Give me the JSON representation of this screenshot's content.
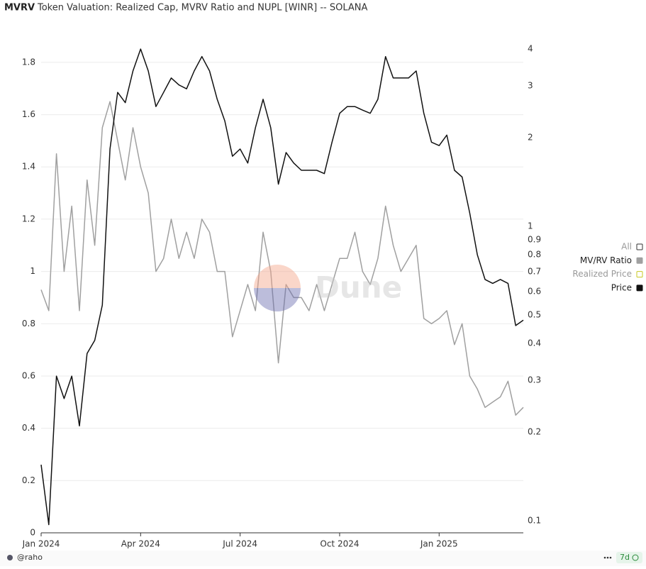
{
  "header": {
    "badge": "MVRV",
    "title": "Token Valuation: Realized Cap, MVRV Ratio and NUPL [WINR] -- SOLANA"
  },
  "chart_data": {
    "type": "line",
    "watermark": "Dune",
    "legend_all": "All",
    "legend": "right",
    "grid": true,
    "y2log": true,
    "categories": [
      "Jan 2024",
      null,
      null,
      null,
      null,
      null,
      null,
      null,
      null,
      null,
      null,
      null,
      null,
      "Apr 2024",
      null,
      null,
      null,
      null,
      null,
      null,
      null,
      null,
      null,
      null,
      null,
      null,
      "Jul 2024",
      null,
      null,
      null,
      null,
      null,
      null,
      null,
      null,
      null,
      null,
      null,
      null,
      "Oct 2024",
      null,
      null,
      null,
      null,
      null,
      null,
      null,
      null,
      null,
      null,
      null,
      null,
      "Jan 2025",
      null,
      null,
      null,
      null,
      null,
      null,
      null,
      null,
      null,
      null,
      null
    ],
    "ylim": [
      0,
      1.93
    ],
    "yticks": [
      0,
      0.2,
      0.4,
      0.6,
      0.8,
      1,
      1.2,
      1.4,
      1.6,
      1.8
    ],
    "y2lim": [
      0.091,
      4.7
    ],
    "y2ticks": [
      0.1,
      0.2,
      0.3,
      0.4,
      0.5,
      0.6,
      0.7,
      0.8,
      0.9,
      1,
      2,
      3,
      4
    ],
    "series": [
      {
        "name": "MV/RV Ratio",
        "color": "#a0a0a0",
        "axis": "y",
        "values": [
          0.93,
          0.85,
          1.45,
          1.0,
          1.25,
          0.85,
          1.35,
          1.1,
          1.55,
          1.65,
          1.5,
          1.35,
          1.55,
          1.4,
          1.3,
          1.0,
          1.05,
          1.2,
          1.05,
          1.15,
          1.05,
          1.2,
          1.15,
          1.0,
          1.0,
          0.75,
          0.85,
          0.95,
          0.85,
          1.15,
          1.0,
          0.65,
          0.95,
          0.9,
          0.9,
          0.85,
          0.95,
          0.85,
          0.95,
          1.05,
          1.05,
          1.15,
          1.0,
          0.95,
          1.05,
          1.25,
          1.1,
          1.0,
          1.05,
          1.1,
          0.82,
          0.8,
          0.82,
          0.85,
          0.72,
          0.8,
          0.6,
          0.55,
          0.48,
          0.5,
          0.52,
          0.58,
          0.45,
          0.48
        ]
      },
      {
        "name": "Realized Price",
        "color": "#c8c820",
        "visible": false
      },
      {
        "name": "Price",
        "color": "#111111",
        "axis": "y2",
        "values": [
          0.155,
          0.097,
          0.31,
          0.26,
          0.31,
          0.21,
          0.37,
          0.41,
          0.54,
          1.83,
          2.85,
          2.63,
          3.37,
          4.0,
          3.37,
          2.55,
          2.85,
          3.19,
          3.02,
          2.93,
          3.37,
          3.77,
          3.37,
          2.7,
          2.28,
          1.73,
          1.83,
          1.64,
          2.16,
          2.7,
          2.16,
          1.39,
          1.78,
          1.64,
          1.55,
          1.55,
          1.55,
          1.51,
          1.93,
          2.42,
          2.55,
          2.55,
          2.48,
          2.42,
          2.7,
          3.77,
          3.19,
          3.19,
          3.19,
          3.37,
          2.42,
          1.93,
          1.88,
          2.04,
          1.55,
          1.47,
          1.11,
          0.8,
          0.66,
          0.64,
          0.66,
          0.64,
          0.46,
          0.48
        ]
      }
    ]
  },
  "footer": {
    "author": "@raho",
    "refresh": "7d"
  }
}
